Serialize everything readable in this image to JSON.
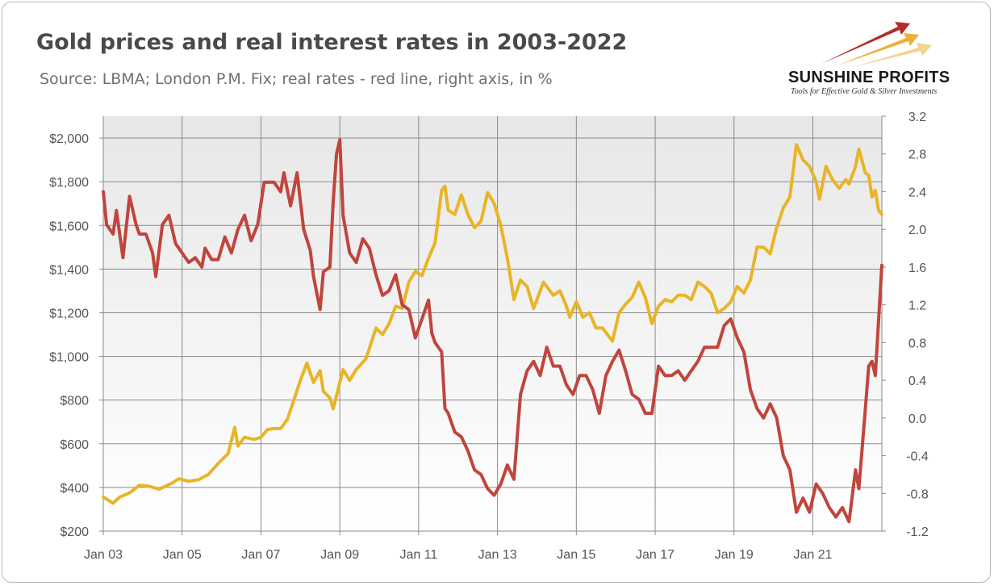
{
  "header": {
    "title": "Gold prices and real interest rates in 2003-2022",
    "subtitle": "Source: LBMA; London P.M. Fix; real rates - red line, right axis, in %"
  },
  "logo": {
    "name": "SUNSHINE PROFITS",
    "tagline": "Tools for Effective Gold & Silver Investments",
    "icon": "rising-arrows-logo-icon",
    "colors": [
      "#b52a2a",
      "#e8b13a",
      "#f0d590"
    ]
  },
  "chart_data": {
    "type": "line",
    "title": "Gold prices and real interest rates in 2003-2022",
    "xlabel": "",
    "ylabel": "",
    "y2label": "",
    "grid": true,
    "legend": "none",
    "x_ticks": [
      "Jan 03",
      "Jan 05",
      "Jan 07",
      "Jan 09",
      "Jan 11",
      "Jan 13",
      "Jan 15",
      "Jan 17",
      "Jan 19",
      "Jan 21"
    ],
    "left_axis": {
      "range": [
        200,
        2100
      ],
      "ticks": [
        200,
        400,
        600,
        800,
        1000,
        1200,
        1400,
        1600,
        1800,
        2000
      ],
      "tick_labels": [
        "$200",
        "$400",
        "$600",
        "$800",
        "$1,000",
        "$1,200",
        "$1,400",
        "$1,600",
        "$1,800",
        "$2,000"
      ]
    },
    "right_axis": {
      "range": [
        -1.2,
        3.2
      ],
      "ticks": [
        -1.2,
        -0.8,
        -0.4,
        0.0,
        0.4,
        0.8,
        1.2,
        1.6,
        2.0,
        2.4,
        2.8,
        3.2
      ],
      "tick_labels": [
        "-1.2",
        "-0.8",
        "-0.4",
        "0.0",
        "0.4",
        "0.8",
        "1.2",
        "1.6",
        "2.0",
        "2.4",
        "2.8",
        "3.2"
      ]
    },
    "series": [
      {
        "axis": "left",
        "color": "#e8b428",
        "points": [
          [
            "2003-01",
            356
          ],
          [
            "2003-04",
            328
          ],
          [
            "2003-06",
            356
          ],
          [
            "2003-09",
            375
          ],
          [
            "2003-12",
            410
          ],
          [
            "2004-03",
            405
          ],
          [
            "2004-06",
            392
          ],
          [
            "2004-10",
            420
          ],
          [
            "2004-12",
            440
          ],
          [
            "2005-03",
            428
          ],
          [
            "2005-06",
            435
          ],
          [
            "2005-09",
            460
          ],
          [
            "2005-12",
            510
          ],
          [
            "2006-03",
            555
          ],
          [
            "2006-05",
            675
          ],
          [
            "2006-06",
            590
          ],
          [
            "2006-08",
            630
          ],
          [
            "2006-11",
            620
          ],
          [
            "2007-01",
            630
          ],
          [
            "2007-03",
            665
          ],
          [
            "2007-05",
            670
          ],
          [
            "2007-07",
            670
          ],
          [
            "2007-09",
            710
          ],
          [
            "2007-11",
            800
          ],
          [
            "2008-01",
            890
          ],
          [
            "2008-03",
            970
          ],
          [
            "2008-05",
            880
          ],
          [
            "2008-07",
            935
          ],
          [
            "2008-08",
            840
          ],
          [
            "2008-10",
            810
          ],
          [
            "2008-11",
            760
          ],
          [
            "2009-02",
            940
          ],
          [
            "2009-04",
            890
          ],
          [
            "2009-06",
            940
          ],
          [
            "2009-09",
            990
          ],
          [
            "2009-12",
            1130
          ],
          [
            "2010-02",
            1100
          ],
          [
            "2010-04",
            1150
          ],
          [
            "2010-06",
            1230
          ],
          [
            "2010-08",
            1220
          ],
          [
            "2010-10",
            1340
          ],
          [
            "2010-12",
            1390
          ],
          [
            "2011-02",
            1370
          ],
          [
            "2011-04",
            1450
          ],
          [
            "2011-06",
            1520
          ],
          [
            "2011-08",
            1760
          ],
          [
            "2011-09",
            1780
          ],
          [
            "2011-10",
            1670
          ],
          [
            "2011-12",
            1650
          ],
          [
            "2012-02",
            1740
          ],
          [
            "2012-04",
            1650
          ],
          [
            "2012-06",
            1590
          ],
          [
            "2012-08",
            1620
          ],
          [
            "2012-10",
            1750
          ],
          [
            "2012-12",
            1700
          ],
          [
            "2013-02",
            1600
          ],
          [
            "2013-04",
            1450
          ],
          [
            "2013-06",
            1260
          ],
          [
            "2013-08",
            1350
          ],
          [
            "2013-10",
            1320
          ],
          [
            "2013-12",
            1220
          ],
          [
            "2014-03",
            1340
          ],
          [
            "2014-06",
            1280
          ],
          [
            "2014-08",
            1300
          ],
          [
            "2014-10",
            1230
          ],
          [
            "2014-11",
            1180
          ],
          [
            "2015-01",
            1250
          ],
          [
            "2015-03",
            1180
          ],
          [
            "2015-05",
            1200
          ],
          [
            "2015-07",
            1130
          ],
          [
            "2015-09",
            1130
          ],
          [
            "2015-11",
            1090
          ],
          [
            "2015-12",
            1070
          ],
          [
            "2016-02",
            1200
          ],
          [
            "2016-04",
            1240
          ],
          [
            "2016-06",
            1270
          ],
          [
            "2016-08",
            1340
          ],
          [
            "2016-10",
            1270
          ],
          [
            "2016-12",
            1150
          ],
          [
            "2017-02",
            1230
          ],
          [
            "2017-04",
            1260
          ],
          [
            "2017-06",
            1250
          ],
          [
            "2017-08",
            1280
          ],
          [
            "2017-10",
            1280
          ],
          [
            "2017-12",
            1260
          ],
          [
            "2018-02",
            1340
          ],
          [
            "2018-04",
            1320
          ],
          [
            "2018-06",
            1290
          ],
          [
            "2018-08",
            1200
          ],
          [
            "2018-10",
            1220
          ],
          [
            "2018-12",
            1250
          ],
          [
            "2019-02",
            1320
          ],
          [
            "2019-04",
            1290
          ],
          [
            "2019-06",
            1350
          ],
          [
            "2019-08",
            1500
          ],
          [
            "2019-10",
            1500
          ],
          [
            "2019-12",
            1470
          ],
          [
            "2020-02",
            1590
          ],
          [
            "2020-04",
            1680
          ],
          [
            "2020-06",
            1730
          ],
          [
            "2020-08",
            1970
          ],
          [
            "2020-10",
            1900
          ],
          [
            "2020-12",
            1870
          ],
          [
            "2021-02",
            1800
          ],
          [
            "2021-03",
            1720
          ],
          [
            "2021-05",
            1870
          ],
          [
            "2021-07",
            1810
          ],
          [
            "2021-09",
            1770
          ],
          [
            "2021-11",
            1810
          ],
          [
            "2021-12",
            1790
          ],
          [
            "2022-02",
            1870
          ],
          [
            "2022-03",
            1950
          ],
          [
            "2022-05",
            1840
          ],
          [
            "2022-06",
            1830
          ],
          [
            "2022-07",
            1730
          ],
          [
            "2022-08",
            1760
          ],
          [
            "2022-09",
            1670
          ],
          [
            "2022-10",
            1650
          ]
        ]
      },
      {
        "axis": "right",
        "color": "#c0453c",
        "points": [
          [
            "2003-01",
            2.4
          ],
          [
            "2003-02",
            2.05
          ],
          [
            "2003-04",
            1.95
          ],
          [
            "2003-05",
            2.2
          ],
          [
            "2003-07",
            1.7
          ],
          [
            "2003-09",
            2.35
          ],
          [
            "2003-11",
            2.05
          ],
          [
            "2003-12",
            1.95
          ],
          [
            "2004-02",
            1.95
          ],
          [
            "2004-04",
            1.75
          ],
          [
            "2004-05",
            1.5
          ],
          [
            "2004-07",
            2.05
          ],
          [
            "2004-09",
            2.15
          ],
          [
            "2004-11",
            1.85
          ],
          [
            "2005-01",
            1.75
          ],
          [
            "2005-03",
            1.65
          ],
          [
            "2005-05",
            1.7
          ],
          [
            "2005-07",
            1.6
          ],
          [
            "2005-08",
            1.8
          ],
          [
            "2005-10",
            1.68
          ],
          [
            "2005-12",
            1.68
          ],
          [
            "2006-02",
            1.92
          ],
          [
            "2006-04",
            1.75
          ],
          [
            "2006-06",
            2.0
          ],
          [
            "2006-08",
            2.15
          ],
          [
            "2006-10",
            1.88
          ],
          [
            "2006-12",
            2.05
          ],
          [
            "2007-02",
            2.5
          ],
          [
            "2007-05",
            2.5
          ],
          [
            "2007-07",
            2.4
          ],
          [
            "2007-08",
            2.6
          ],
          [
            "2007-10",
            2.25
          ],
          [
            "2007-12",
            2.6
          ],
          [
            "2008-02",
            2.0
          ],
          [
            "2008-04",
            1.78
          ],
          [
            "2008-05",
            1.5
          ],
          [
            "2008-07",
            1.15
          ],
          [
            "2008-08",
            1.55
          ],
          [
            "2008-10",
            1.6
          ],
          [
            "2008-11",
            2.3
          ],
          [
            "2008-12",
            2.8
          ],
          [
            "2009-01",
            2.95
          ],
          [
            "2009-02",
            2.15
          ],
          [
            "2009-04",
            1.75
          ],
          [
            "2009-06",
            1.65
          ],
          [
            "2009-08",
            1.9
          ],
          [
            "2009-10",
            1.8
          ],
          [
            "2009-12",
            1.52
          ],
          [
            "2010-02",
            1.3
          ],
          [
            "2010-04",
            1.35
          ],
          [
            "2010-06",
            1.52
          ],
          [
            "2010-08",
            1.2
          ],
          [
            "2010-10",
            1.15
          ],
          [
            "2010-12",
            0.85
          ],
          [
            "2011-02",
            1.05
          ],
          [
            "2011-04",
            1.25
          ],
          [
            "2011-05",
            0.9
          ],
          [
            "2011-06",
            0.8
          ],
          [
            "2011-08",
            0.7
          ],
          [
            "2011-09",
            0.1
          ],
          [
            "2011-10",
            0.05
          ],
          [
            "2011-12",
            -0.15
          ],
          [
            "2012-02",
            -0.2
          ],
          [
            "2012-04",
            -0.35
          ],
          [
            "2012-06",
            -0.55
          ],
          [
            "2012-08",
            -0.6
          ],
          [
            "2012-10",
            -0.75
          ],
          [
            "2012-12",
            -0.82
          ],
          [
            "2013-02",
            -0.7
          ],
          [
            "2013-04",
            -0.5
          ],
          [
            "2013-06",
            -0.65
          ],
          [
            "2013-08",
            0.25
          ],
          [
            "2013-10",
            0.5
          ],
          [
            "2013-12",
            0.6
          ],
          [
            "2014-02",
            0.45
          ],
          [
            "2014-04",
            0.75
          ],
          [
            "2014-06",
            0.55
          ],
          [
            "2014-08",
            0.55
          ],
          [
            "2014-10",
            0.35
          ],
          [
            "2014-12",
            0.25
          ],
          [
            "2015-02",
            0.45
          ],
          [
            "2015-04",
            0.45
          ],
          [
            "2015-06",
            0.3
          ],
          [
            "2015-08",
            0.05
          ],
          [
            "2015-10",
            0.45
          ],
          [
            "2015-12",
            0.6
          ],
          [
            "2016-02",
            0.72
          ],
          [
            "2016-04",
            0.5
          ],
          [
            "2016-06",
            0.25
          ],
          [
            "2016-08",
            0.2
          ],
          [
            "2016-10",
            0.05
          ],
          [
            "2016-12",
            0.05
          ],
          [
            "2017-02",
            0.55
          ],
          [
            "2017-04",
            0.45
          ],
          [
            "2017-06",
            0.45
          ],
          [
            "2017-08",
            0.5
          ],
          [
            "2017-10",
            0.4
          ],
          [
            "2017-12",
            0.5
          ],
          [
            "2018-02",
            0.6
          ],
          [
            "2018-04",
            0.75
          ],
          [
            "2018-06",
            0.75
          ],
          [
            "2018-08",
            0.75
          ],
          [
            "2018-10",
            0.98
          ],
          [
            "2018-12",
            1.05
          ],
          [
            "2019-02",
            0.85
          ],
          [
            "2019-04",
            0.7
          ],
          [
            "2019-06",
            0.3
          ],
          [
            "2019-08",
            0.1
          ],
          [
            "2019-10",
            0.0
          ],
          [
            "2019-12",
            0.15
          ],
          [
            "2020-02",
            0.0
          ],
          [
            "2020-04",
            -0.4
          ],
          [
            "2020-06",
            -0.55
          ],
          [
            "2020-08",
            -1.0
          ],
          [
            "2020-10",
            -0.85
          ],
          [
            "2020-12",
            -1.0
          ],
          [
            "2021-02",
            -0.7
          ],
          [
            "2021-04",
            -0.8
          ],
          [
            "2021-06",
            -0.95
          ],
          [
            "2021-08",
            -1.05
          ],
          [
            "2021-10",
            -0.95
          ],
          [
            "2021-12",
            -1.1
          ],
          [
            "2022-02",
            -0.55
          ],
          [
            "2022-03",
            -0.75
          ],
          [
            "2022-05",
            0.1
          ],
          [
            "2022-06",
            0.55
          ],
          [
            "2022-07",
            0.6
          ],
          [
            "2022-08",
            0.45
          ],
          [
            "2022-10",
            1.62
          ]
        ]
      }
    ]
  }
}
